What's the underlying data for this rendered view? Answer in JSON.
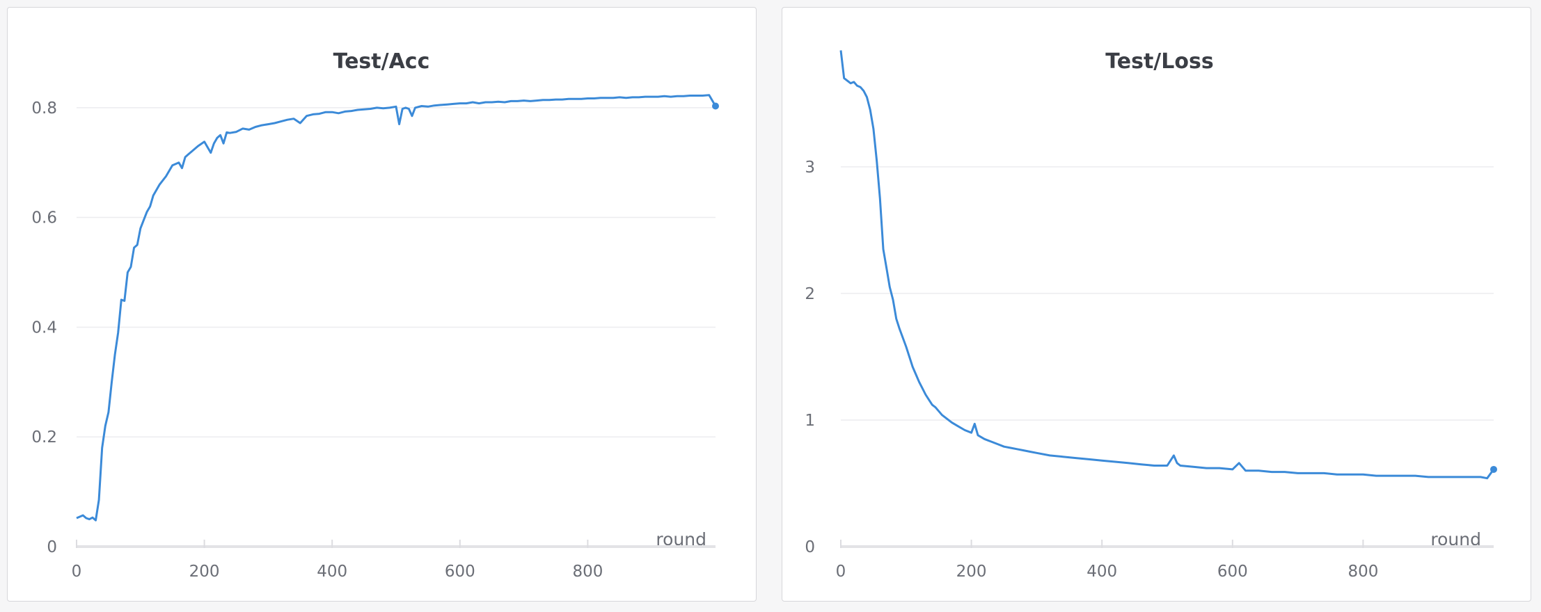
{
  "colors": {
    "series": "#3b8ad8"
  },
  "chart_data": [
    {
      "type": "line",
      "title": "Test/Acc",
      "xlabel": "round",
      "ylabel": "",
      "xlim": [
        0,
        1000
      ],
      "ylim": [
        0,
        0.9
      ],
      "xticks": [
        0,
        200,
        400,
        600,
        800
      ],
      "xtick_labels": [
        "0",
        "200",
        "400",
        "600",
        "800"
      ],
      "yticks": [
        0,
        0.2,
        0.4,
        0.6,
        0.8
      ],
      "ytick_labels": [
        "0",
        "0.2",
        "0.4",
        "0.6",
        "0.8"
      ],
      "grid": true,
      "end_marker": true,
      "series": [
        {
          "x": [
            0,
            10,
            15,
            20,
            25,
            30,
            35,
            40,
            45,
            50,
            55,
            60,
            65,
            70,
            75,
            80,
            85,
            90,
            95,
            100,
            105,
            110,
            115,
            120,
            130,
            140,
            150,
            160,
            165,
            170,
            175,
            180,
            190,
            200,
            210,
            215,
            220,
            225,
            230,
            235,
            240,
            250,
            260,
            270,
            280,
            290,
            300,
            310,
            320,
            330,
            340,
            350,
            360,
            370,
            380,
            390,
            400,
            410,
            420,
            430,
            440,
            450,
            460,
            470,
            480,
            490,
            500,
            505,
            510,
            515,
            520,
            525,
            530,
            540,
            550,
            560,
            570,
            580,
            590,
            600,
            610,
            620,
            630,
            640,
            650,
            660,
            670,
            680,
            690,
            700,
            710,
            720,
            730,
            740,
            750,
            760,
            770,
            780,
            790,
            800,
            810,
            820,
            830,
            840,
            850,
            860,
            870,
            880,
            890,
            900,
            910,
            920,
            930,
            940,
            950,
            960,
            970,
            980,
            990,
            1000
          ],
          "y": [
            0.052,
            0.057,
            0.052,
            0.05,
            0.053,
            0.048,
            0.085,
            0.18,
            0.22,
            0.245,
            0.3,
            0.35,
            0.39,
            0.45,
            0.448,
            0.5,
            0.51,
            0.545,
            0.55,
            0.58,
            0.595,
            0.61,
            0.62,
            0.64,
            0.66,
            0.675,
            0.695,
            0.7,
            0.69,
            0.71,
            0.715,
            0.72,
            0.73,
            0.738,
            0.718,
            0.735,
            0.745,
            0.75,
            0.735,
            0.755,
            0.754,
            0.756,
            0.762,
            0.76,
            0.765,
            0.768,
            0.77,
            0.772,
            0.775,
            0.778,
            0.78,
            0.772,
            0.785,
            0.788,
            0.789,
            0.792,
            0.792,
            0.79,
            0.793,
            0.794,
            0.796,
            0.797,
            0.798,
            0.8,
            0.799,
            0.8,
            0.802,
            0.77,
            0.798,
            0.8,
            0.798,
            0.785,
            0.8,
            0.803,
            0.802,
            0.804,
            0.805,
            0.806,
            0.807,
            0.808,
            0.808,
            0.81,
            0.808,
            0.81,
            0.81,
            0.811,
            0.81,
            0.812,
            0.812,
            0.813,
            0.812,
            0.813,
            0.814,
            0.814,
            0.815,
            0.815,
            0.816,
            0.816,
            0.816,
            0.817,
            0.817,
            0.818,
            0.818,
            0.818,
            0.819,
            0.818,
            0.819,
            0.819,
            0.82,
            0.82,
            0.82,
            0.821,
            0.82,
            0.821,
            0.821,
            0.822,
            0.822,
            0.822,
            0.823,
            0.803
          ]
        }
      ]
    },
    {
      "type": "line",
      "title": "Test/Loss",
      "xlabel": "round",
      "ylabel": "",
      "xlim": [
        0,
        1000
      ],
      "ylim": [
        0,
        3.9
      ],
      "xticks": [
        0,
        200,
        400,
        600,
        800
      ],
      "xtick_labels": [
        "0",
        "200",
        "400",
        "600",
        "800"
      ],
      "yticks": [
        0,
        1,
        2,
        3
      ],
      "ytick_labels": [
        "0",
        "1",
        "2",
        "3"
      ],
      "grid": true,
      "end_marker": true,
      "series": [
        {
          "x": [
            0,
            5,
            10,
            15,
            20,
            25,
            30,
            35,
            40,
            45,
            50,
            55,
            60,
            65,
            70,
            75,
            80,
            85,
            90,
            95,
            100,
            105,
            110,
            115,
            120,
            125,
            130,
            135,
            140,
            145,
            150,
            155,
            160,
            170,
            180,
            190,
            200,
            205,
            210,
            220,
            230,
            240,
            250,
            260,
            270,
            280,
            290,
            300,
            320,
            340,
            360,
            380,
            400,
            420,
            440,
            460,
            480,
            500,
            510,
            515,
            520,
            540,
            560,
            580,
            600,
            610,
            620,
            640,
            660,
            680,
            700,
            720,
            740,
            760,
            780,
            800,
            820,
            840,
            860,
            880,
            900,
            920,
            940,
            960,
            970,
            980,
            990,
            1000
          ],
          "y": [
            3.92,
            3.7,
            3.68,
            3.66,
            3.67,
            3.64,
            3.63,
            3.6,
            3.55,
            3.45,
            3.3,
            3.05,
            2.75,
            2.35,
            2.2,
            2.05,
            1.95,
            1.8,
            1.72,
            1.65,
            1.58,
            1.5,
            1.42,
            1.36,
            1.3,
            1.25,
            1.2,
            1.16,
            1.12,
            1.1,
            1.07,
            1.04,
            1.02,
            0.98,
            0.95,
            0.92,
            0.9,
            0.97,
            0.88,
            0.85,
            0.83,
            0.81,
            0.79,
            0.78,
            0.77,
            0.76,
            0.75,
            0.74,
            0.72,
            0.71,
            0.7,
            0.69,
            0.68,
            0.67,
            0.66,
            0.65,
            0.64,
            0.64,
            0.72,
            0.66,
            0.64,
            0.63,
            0.62,
            0.62,
            0.61,
            0.66,
            0.6,
            0.6,
            0.59,
            0.59,
            0.58,
            0.58,
            0.58,
            0.57,
            0.57,
            0.57,
            0.56,
            0.56,
            0.56,
            0.56,
            0.55,
            0.55,
            0.55,
            0.55,
            0.55,
            0.55,
            0.54,
            0.61
          ]
        }
      ]
    }
  ]
}
